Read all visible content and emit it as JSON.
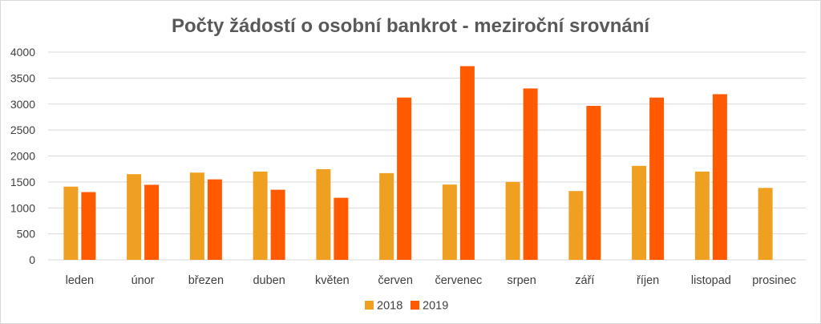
{
  "chart_data": {
    "type": "bar",
    "title": "Počty žádostí o osobní bankrot - meziroční srovnání",
    "xlabel": "",
    "ylabel": "",
    "ylim": [
      0,
      4000
    ],
    "yticks": [
      "0",
      "500",
      "1000",
      "1500",
      "2000",
      "2500",
      "3000",
      "3500",
      "4000"
    ],
    "grid": true,
    "legend_position": "bottom",
    "categories": [
      "leden",
      "únor",
      "březen",
      "duben",
      "květen",
      "červen",
      "červenec",
      "srpen",
      "září",
      "říjen",
      "listopad",
      "prosinec"
    ],
    "series": [
      {
        "name": "2018",
        "color": "#F0A020",
        "values": [
          1410,
          1650,
          1680,
          1700,
          1745,
          1670,
          1450,
          1500,
          1325,
          1810,
          1700,
          1385
        ]
      },
      {
        "name": "2019",
        "color": "#FF5A00",
        "values": [
          1305,
          1445,
          1550,
          1350,
          1195,
          3125,
          3730,
          3300,
          2965,
          3125,
          3190,
          null
        ]
      }
    ]
  }
}
